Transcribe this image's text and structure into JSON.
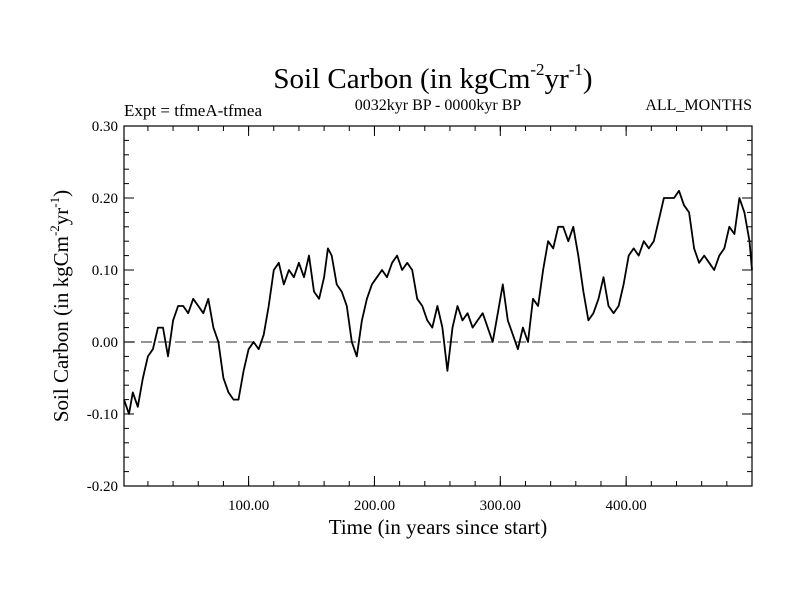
{
  "chart_data": {
    "type": "line",
    "title_main": "Soil Carbon (in kgCm",
    "title_sup1": "-2",
    "title_mid": "yr",
    "title_sup2": "-1",
    "title_end": ")",
    "subtitle_left": "Expt = tfmeA-tfmea",
    "subtitle_center": "0032kyr BP - 0000kyr BP",
    "subtitle_right": "ALL_MONTHS",
    "xlabel": "Time (in years since start)",
    "ylabel_main": "Soil Carbon (in kgCm",
    "ylabel_sup1": "-2",
    "ylabel_mid": "yr",
    "ylabel_sup2": "-1",
    "ylabel_end": ")",
    "xlim": [
      1,
      500
    ],
    "ylim": [
      -0.2,
      0.3
    ],
    "x_ticks": [
      100,
      200,
      300,
      400
    ],
    "x_tick_labels": [
      "100.00",
      "200.00",
      "300.00",
      "400.00"
    ],
    "y_ticks": [
      -0.2,
      -0.1,
      0.0,
      0.1,
      0.2,
      0.3
    ],
    "y_tick_labels": [
      "-0.20",
      "-0.10",
      "0.00",
      "0.10",
      "0.20",
      "0.30"
    ],
    "reference_line": 0.0,
    "series": [
      {
        "name": "Soil Carbon",
        "color": "#000000",
        "x": [
          1,
          5,
          8,
          12,
          16,
          20,
          24,
          28,
          32,
          36,
          40,
          44,
          48,
          52,
          56,
          60,
          64,
          68,
          72,
          76,
          80,
          84,
          88,
          92,
          96,
          100,
          104,
          108,
          112,
          116,
          120,
          124,
          128,
          132,
          136,
          140,
          144,
          148,
          152,
          156,
          160,
          163,
          166,
          170,
          174,
          178,
          182,
          186,
          190,
          194,
          198,
          202,
          206,
          210,
          214,
          218,
          222,
          226,
          230,
          234,
          238,
          242,
          246,
          250,
          254,
          258,
          262,
          266,
          270,
          274,
          278,
          282,
          286,
          290,
          294,
          298,
          302,
          306,
          310,
          314,
          318,
          322,
          326,
          330,
          334,
          338,
          342,
          346,
          350,
          354,
          358,
          362,
          366,
          370,
          374,
          378,
          382,
          386,
          390,
          394,
          398,
          402,
          406,
          410,
          414,
          418,
          422,
          426,
          430,
          434,
          438,
          442,
          446,
          450,
          454,
          458,
          462,
          466,
          470,
          474,
          478,
          482,
          486,
          490,
          494,
          498,
          500
        ],
        "values": [
          -0.08,
          -0.1,
          -0.07,
          -0.09,
          -0.05,
          -0.02,
          -0.01,
          0.02,
          0.02,
          -0.02,
          0.03,
          0.05,
          0.05,
          0.04,
          0.06,
          0.05,
          0.04,
          0.06,
          0.02,
          0.0,
          -0.05,
          -0.07,
          -0.08,
          -0.08,
          -0.04,
          -0.01,
          0.0,
          -0.01,
          0.01,
          0.05,
          0.1,
          0.11,
          0.08,
          0.1,
          0.09,
          0.11,
          0.09,
          0.12,
          0.07,
          0.06,
          0.09,
          0.13,
          0.12,
          0.08,
          0.07,
          0.05,
          0.0,
          -0.02,
          0.03,
          0.06,
          0.08,
          0.09,
          0.1,
          0.09,
          0.11,
          0.12,
          0.1,
          0.11,
          0.1,
          0.06,
          0.05,
          0.03,
          0.02,
          0.05,
          0.02,
          -0.04,
          0.02,
          0.05,
          0.03,
          0.04,
          0.02,
          0.03,
          0.04,
          0.02,
          0.0,
          0.04,
          0.08,
          0.03,
          0.01,
          -0.01,
          0.02,
          0.0,
          0.06,
          0.05,
          0.1,
          0.14,
          0.13,
          0.16,
          0.16,
          0.14,
          0.16,
          0.12,
          0.07,
          0.03,
          0.04,
          0.06,
          0.09,
          0.05,
          0.04,
          0.05,
          0.08,
          0.12,
          0.13,
          0.12,
          0.14,
          0.13,
          0.14,
          0.17,
          0.2,
          0.2,
          0.2,
          0.21,
          0.19,
          0.18,
          0.13,
          0.11,
          0.12,
          0.11,
          0.1,
          0.12,
          0.13,
          0.16,
          0.15,
          0.2,
          0.18,
          0.14,
          0.1
        ]
      }
    ]
  }
}
